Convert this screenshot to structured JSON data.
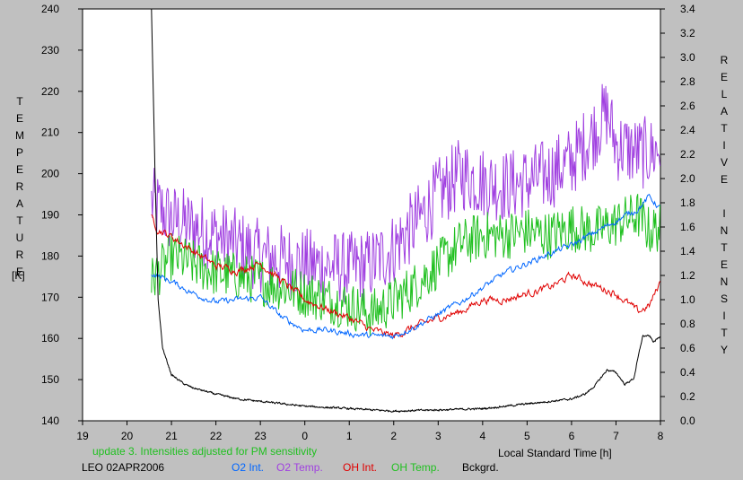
{
  "chart_data": {
    "type": "line",
    "xlabel": "Local Standard Time [h]",
    "ylabel_left": "TEMPERATURE",
    "ylabel_left_unit": "[K]",
    "ylabel_right": "RELATIVE INTENSITY",
    "x_ticks": [
      "19",
      "20",
      "21",
      "22",
      "23",
      "0",
      "1",
      "2",
      "3",
      "4",
      "5",
      "6",
      "7",
      "8"
    ],
    "x_range": [
      19,
      32
    ],
    "y_left_range": [
      140,
      240
    ],
    "y_left_ticks": [
      "140",
      "150",
      "160",
      "170",
      "180",
      "190",
      "200",
      "210",
      "220",
      "230",
      "240"
    ],
    "y_right_range": [
      0.0,
      3.4
    ],
    "y_right_ticks": [
      "0.0",
      "0.2",
      "0.4",
      "0.6",
      "0.8",
      "1.0",
      "1.2",
      "1.4",
      "1.6",
      "1.8",
      "2.0",
      "2.2",
      "2.4",
      "2.6",
      "2.8",
      "3.0",
      "3.2",
      "3.4"
    ],
    "note": "update 3. Intensities adjusted for PM sensitivity",
    "station_date": "LEO 02APR2006",
    "legend": [
      {
        "name": "O2 Int.",
        "color": "#0066ff"
      },
      {
        "name": "O2 Temp.",
        "color": "#a040e0"
      },
      {
        "name": "OH Int.",
        "color": "#e00000"
      },
      {
        "name": "OH Temp.",
        "color": "#20c020"
      },
      {
        "name": "Bckgrd.",
        "color": "#000000"
      }
    ],
    "series": [
      {
        "name": "O2 Temp.",
        "axis": "left",
        "noise": 9,
        "x": [
          20.55,
          21,
          22,
          23,
          24,
          25,
          25.5,
          26,
          26.5,
          27,
          27.5,
          28,
          28.5,
          29,
          29.5,
          30,
          30.5,
          30.8,
          31,
          31.5,
          31.75,
          32
        ],
        "y": [
          193,
          189,
          185,
          180,
          178,
          177,
          178,
          182,
          188,
          195,
          200,
          198,
          197,
          198,
          200,
          203,
          210,
          215,
          207,
          205,
          205,
          206
        ]
      },
      {
        "name": "OH Temp.",
        "axis": "left",
        "noise": 6,
        "x": [
          20.55,
          21,
          22,
          23,
          24,
          25,
          25.5,
          26,
          26.5,
          27,
          27.5,
          28,
          28.5,
          29,
          29.5,
          30,
          30.5,
          31,
          31.5,
          31.75,
          32
        ],
        "y": [
          174,
          180,
          176,
          174,
          171,
          168,
          166,
          169,
          173,
          178,
          183,
          185,
          185,
          186,
          185,
          187,
          186,
          188,
          190,
          186,
          187
        ]
      },
      {
        "name": "OH Int.",
        "axis": "right",
        "noise": 0.025,
        "x": [
          20.55,
          20.7,
          21,
          21.5,
          22,
          22.5,
          23,
          23.5,
          24,
          24.5,
          25,
          25.5,
          26,
          26.5,
          27,
          27.5,
          28,
          28.5,
          29,
          29.5,
          30,
          30.5,
          31,
          31.5,
          31.75,
          32
        ],
        "y": [
          1.68,
          1.58,
          1.52,
          1.4,
          1.28,
          1.24,
          1.3,
          1.15,
          1.0,
          0.92,
          0.85,
          0.75,
          0.7,
          0.78,
          0.85,
          0.9,
          1.0,
          1.0,
          1.05,
          1.1,
          1.2,
          1.12,
          1.05,
          0.9,
          0.95,
          1.15
        ]
      },
      {
        "name": "O2 Int.",
        "axis": "right",
        "noise": 0.02,
        "x": [
          20.55,
          21,
          21.5,
          22,
          22.5,
          23,
          23.5,
          24,
          24.5,
          25,
          25.5,
          26,
          26.5,
          27,
          27.5,
          28,
          28.5,
          29,
          29.5,
          30,
          30.5,
          31,
          31.5,
          31.75,
          32
        ],
        "y": [
          1.22,
          1.15,
          1.05,
          0.98,
          1.0,
          1.02,
          0.85,
          0.75,
          0.75,
          0.72,
          0.7,
          0.7,
          0.78,
          0.88,
          0.98,
          1.1,
          1.22,
          1.3,
          1.38,
          1.45,
          1.55,
          1.65,
          1.75,
          1.85,
          1.75
        ]
      },
      {
        "name": "Bckgrd.",
        "axis": "right",
        "noise": 0.006,
        "x": [
          20.55,
          20.62,
          20.7,
          20.8,
          21,
          21.3,
          21.5,
          22,
          22.5,
          23,
          24,
          25,
          26,
          27,
          28,
          28.5,
          29,
          29.5,
          30,
          30.3,
          30.5,
          30.8,
          31,
          31.2,
          31.4,
          31.6,
          31.75,
          31.85,
          32
        ],
        "y": [
          3.4,
          2.2,
          1.0,
          0.6,
          0.38,
          0.3,
          0.27,
          0.22,
          0.18,
          0.16,
          0.12,
          0.1,
          0.08,
          0.09,
          0.1,
          0.12,
          0.14,
          0.16,
          0.18,
          0.22,
          0.28,
          0.42,
          0.4,
          0.3,
          0.35,
          0.7,
          0.7,
          0.65,
          0.7
        ]
      }
    ]
  }
}
